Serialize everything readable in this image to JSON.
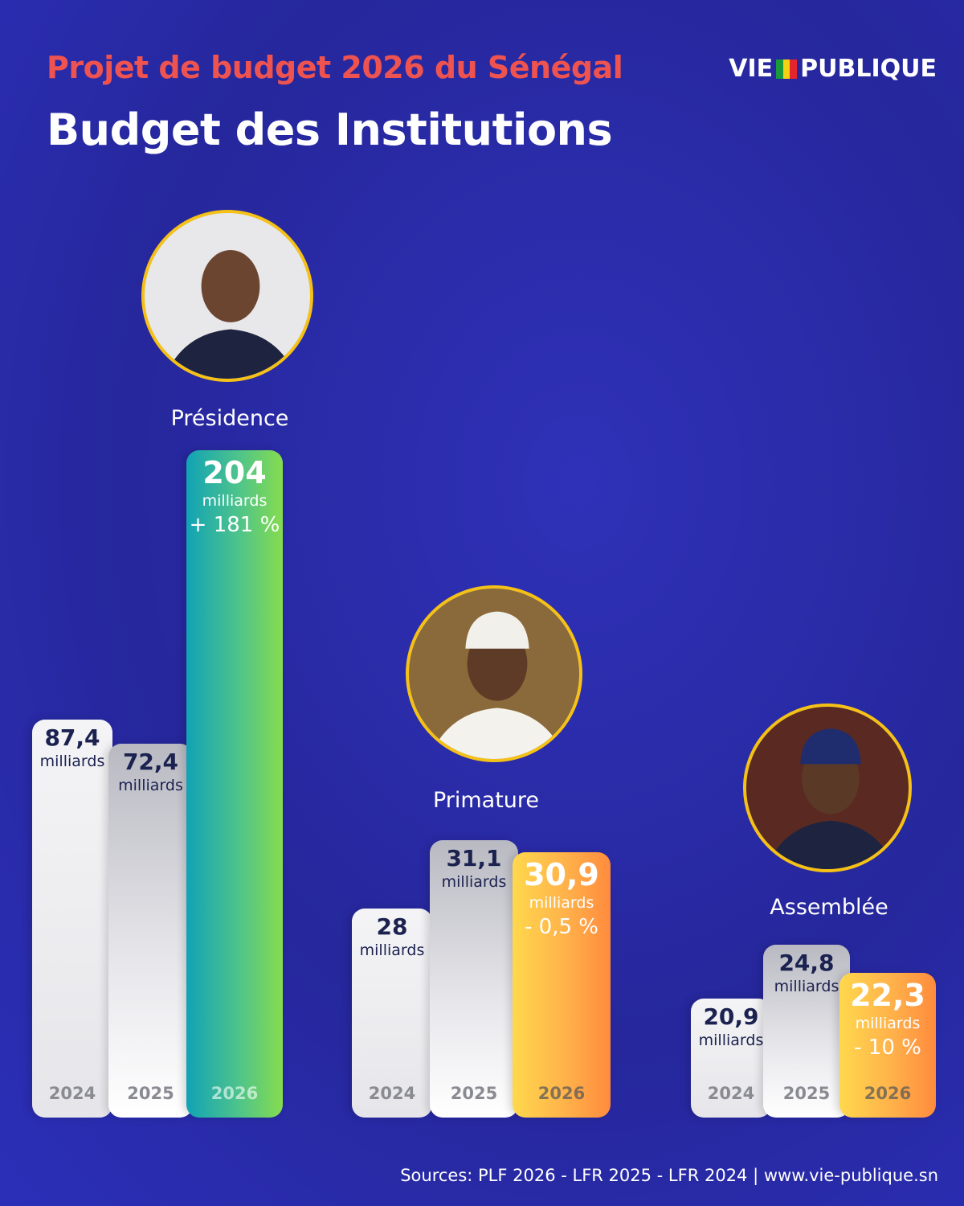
{
  "header": {
    "subtitle": "Projet de budget 2026 du Sénégal",
    "title": "Budget des Institutions",
    "logo_left": "VIE",
    "logo_right": "PUBLIQUE"
  },
  "groups": [
    {
      "name": "Présidence",
      "bars": [
        {
          "value": "87,4",
          "unit": "milliards",
          "year": "2024"
        },
        {
          "value": "72,4",
          "unit": "milliards",
          "year": "2025"
        },
        {
          "value": "204",
          "unit": "milliards",
          "change": "+ 181 %",
          "year": "2026"
        }
      ]
    },
    {
      "name": "Primature",
      "bars": [
        {
          "value": "28",
          "unit": "milliards",
          "year": "2024"
        },
        {
          "value": "31,1",
          "unit": "milliards",
          "year": "2025"
        },
        {
          "value": "30,9",
          "unit": "milliards",
          "change": "- 0,5 %",
          "year": "2026"
        }
      ]
    },
    {
      "name": "Assemblée",
      "bars": [
        {
          "value": "20,9",
          "unit": "milliards",
          "year": "2024"
        },
        {
          "value": "24,8",
          "unit": "milliards",
          "year": "2025"
        },
        {
          "value": "22,3",
          "unit": "milliards",
          "change": "- 10 %",
          "year": "2026"
        }
      ]
    }
  ],
  "source": "Sources: PLF 2026 - LFR 2025 - LFR 2024 | www.vie-publique.sn"
}
